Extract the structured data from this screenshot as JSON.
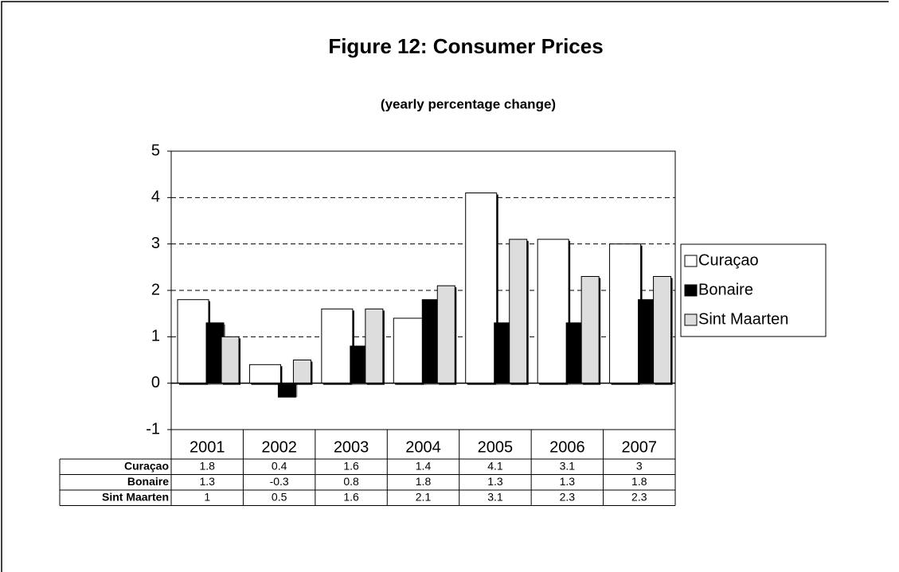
{
  "chart_data": {
    "type": "bar",
    "title": "Figure 12: Consumer Prices",
    "subtitle": "(yearly percentage change)",
    "categories": [
      "2001",
      "2002",
      "2003",
      "2004",
      "2005",
      "2006",
      "2007"
    ],
    "series": [
      {
        "name": "Curaçao",
        "color": "#ffffff",
        "values": [
          1.8,
          0.4,
          1.6,
          1.4,
          4.1,
          3.1,
          3
        ]
      },
      {
        "name": "Bonaire",
        "color": "#000000",
        "values": [
          1.3,
          -0.3,
          0.8,
          1.8,
          1.3,
          1.3,
          1.8
        ]
      },
      {
        "name": "Sint Maarten",
        "color": "#dddddd",
        "values": [
          1,
          0.5,
          1.6,
          2.1,
          3.1,
          2.3,
          2.3
        ]
      }
    ],
    "ylim": [
      -1,
      5
    ],
    "yticks": [
      5,
      4,
      3,
      2,
      1,
      0,
      -1
    ],
    "grid": true,
    "legend": "right"
  }
}
